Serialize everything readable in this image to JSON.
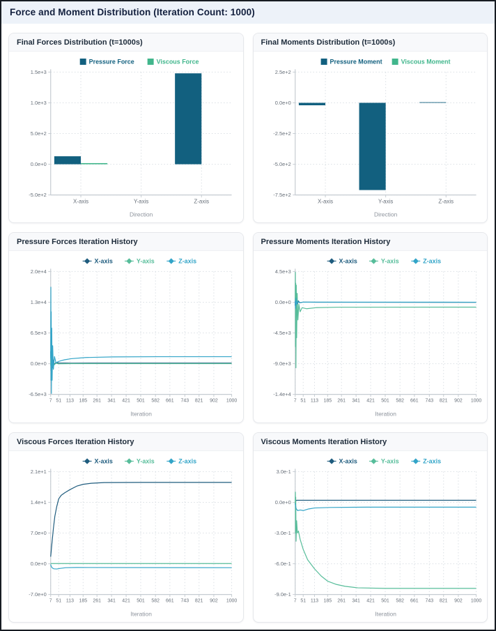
{
  "page": {
    "title": "Force and Moment Distribution (Iteration Count: 1000)"
  },
  "theme": {
    "grid": "#dadfe4",
    "axis": "#c6ccd2",
    "tick_text": "#68707a",
    "axis_label_text": "#8d939c",
    "pressure_color": "#12607f",
    "viscous_color": "#41b68c",
    "x_series_color": "#1f5c7e",
    "y_series_color": "#57bd9a",
    "z_series_color": "#33a5c8"
  },
  "chart_data": [
    {
      "title": "Final Forces Distribution (t=1000s)",
      "type": "bar",
      "xlabel": "Direction",
      "categories": [
        "X-axis",
        "Y-axis",
        "Z-axis"
      ],
      "ylim": [
        -500,
        1500
      ],
      "yticks": [
        {
          "label": "1.5e+3",
          "value": 1500
        },
        {
          "label": "1.0e+3",
          "value": 1000
        },
        {
          "label": "5.0e+2",
          "value": 500
        },
        {
          "label": "0.0e+0",
          "value": 0
        },
        {
          "label": "-5.0e+2",
          "value": -500
        }
      ],
      "series": [
        {
          "name": "Pressure Force",
          "color": "#12607f",
          "values": [
            130,
            0,
            1480
          ]
        },
        {
          "name": "Viscous Force",
          "color": "#41b68c",
          "values": [
            18.5,
            0.2,
            -0.9
          ]
        }
      ]
    },
    {
      "title": "Final Moments Distribution (t=1000s)",
      "type": "bar",
      "xlabel": "Direction",
      "categories": [
        "X-axis",
        "Y-axis",
        "Z-axis"
      ],
      "ylim": [
        -750,
        250
      ],
      "yticks": [
        {
          "label": "2.5e+2",
          "value": 250
        },
        {
          "label": "0.0e+0",
          "value": 0
        },
        {
          "label": "-2.5e+2",
          "value": -250
        },
        {
          "label": "-5.0e+2",
          "value": -500
        },
        {
          "label": "-7.5e+2",
          "value": -750
        }
      ],
      "series": [
        {
          "name": "Pressure Moment",
          "color": "#12607f",
          "values": [
            -20,
            -710,
            5
          ]
        },
        {
          "name": "Viscous Moment",
          "color": "#41b68c",
          "values": [
            0.02,
            -0.84,
            -0.05
          ]
        }
      ]
    },
    {
      "title": "Pressure Forces Iteration History",
      "type": "line",
      "xlabel": "Iteration",
      "xlim": [
        7,
        1000
      ],
      "xticks": [
        7,
        51,
        113,
        185,
        261,
        341,
        421,
        501,
        582,
        661,
        743,
        821,
        902,
        1000
      ],
      "ylim": [
        -6500,
        19500
      ],
      "yticks": [
        {
          "label": "2.0e+4",
          "value": 19500
        },
        {
          "label": "1.3e+4",
          "value": 13000
        },
        {
          "label": "6.5e+3",
          "value": 6500
        },
        {
          "label": "0.0e+0",
          "value": 0
        },
        {
          "label": "-6.5e+3",
          "value": -6500
        }
      ],
      "series": [
        {
          "name": "X-axis",
          "color": "#1f5c7e",
          "points": [
            [
              7,
              2600
            ],
            [
              9,
              -1500
            ],
            [
              10,
              5200
            ],
            [
              12,
              -2200
            ],
            [
              14,
              2600
            ],
            [
              17,
              -900
            ],
            [
              21,
              800
            ],
            [
              27,
              -200
            ],
            [
              35,
              250
            ],
            [
              51,
              140
            ],
            [
              120,
              110
            ],
            [
              300,
              125
            ],
            [
              1000,
              130
            ]
          ]
        },
        {
          "name": "Y-axis",
          "color": "#57bd9a",
          "points": [
            [
              7,
              -400
            ],
            [
              9,
              2200
            ],
            [
              11,
              -2600
            ],
            [
              13,
              1500
            ],
            [
              16,
              -900
            ],
            [
              20,
              500
            ],
            [
              26,
              -250
            ],
            [
              35,
              80
            ],
            [
              51,
              -30
            ],
            [
              120,
              10
            ],
            [
              1000,
              5
            ]
          ]
        },
        {
          "name": "Z-axis",
          "color": "#33a5c8",
          "points": [
            [
              7,
              1200
            ],
            [
              8,
              16200
            ],
            [
              9,
              -3500
            ],
            [
              10,
              11000
            ],
            [
              11,
              -6300
            ],
            [
              13,
              7500
            ],
            [
              15,
              -3500
            ],
            [
              18,
              3800
            ],
            [
              22,
              -1200
            ],
            [
              28,
              1500
            ],
            [
              36,
              200
            ],
            [
              51,
              480
            ],
            [
              80,
              800
            ],
            [
              120,
              1050
            ],
            [
              200,
              1300
            ],
            [
              350,
              1430
            ],
            [
              600,
              1475
            ],
            [
              1000,
              1480
            ]
          ]
        }
      ]
    },
    {
      "title": "Pressure Moments Iteration History",
      "type": "line",
      "xlabel": "Iteration",
      "xlim": [
        7,
        1000
      ],
      "xticks": [
        7,
        51,
        113,
        185,
        261,
        341,
        421,
        501,
        582,
        661,
        743,
        821,
        902,
        1000
      ],
      "ylim": [
        -13500,
        4500
      ],
      "yticks": [
        {
          "label": "4.5e+3",
          "value": 4500
        },
        {
          "label": "0.0e+0",
          "value": 0
        },
        {
          "label": "-4.5e+3",
          "value": -4500
        },
        {
          "label": "-9.0e+3",
          "value": -9000
        },
        {
          "label": "-1.4e+4",
          "value": -13500
        }
      ],
      "series": [
        {
          "name": "X-axis",
          "color": "#1f5c7e",
          "points": [
            [
              7,
              -500
            ],
            [
              9,
              1300
            ],
            [
              11,
              -1500
            ],
            [
              14,
              800
            ],
            [
              18,
              -500
            ],
            [
              24,
              200
            ],
            [
              32,
              -80
            ],
            [
              51,
              20
            ],
            [
              120,
              -10
            ],
            [
              1000,
              -20
            ]
          ]
        },
        {
          "name": "Y-axis",
          "color": "#57bd9a",
          "points": [
            [
              7,
              300
            ],
            [
              8,
              4400
            ],
            [
              9,
              -6500
            ],
            [
              10,
              2800
            ],
            [
              11,
              -9600
            ],
            [
              13,
              2500
            ],
            [
              15,
              -5200
            ],
            [
              18,
              1300
            ],
            [
              22,
              -2600
            ],
            [
              27,
              -300
            ],
            [
              34,
              -1400
            ],
            [
              45,
              -800
            ],
            [
              70,
              -950
            ],
            [
              120,
              -800
            ],
            [
              250,
              -730
            ],
            [
              1000,
              -715
            ]
          ]
        },
        {
          "name": "Z-axis",
          "color": "#33a5c8",
          "points": [
            [
              7,
              200
            ],
            [
              9,
              -900
            ],
            [
              12,
              600
            ],
            [
              16,
              -350
            ],
            [
              22,
              150
            ],
            [
              30,
              -60
            ],
            [
              51,
              20
            ],
            [
              1000,
              5
            ]
          ]
        }
      ]
    },
    {
      "title": "Viscous Forces Iteration History",
      "type": "line",
      "xlabel": "Iteration",
      "xlim": [
        7,
        1000
      ],
      "xticks": [
        7,
        51,
        113,
        185,
        261,
        341,
        421,
        501,
        582,
        661,
        743,
        821,
        902,
        1000
      ],
      "ylim": [
        -7,
        21
      ],
      "yticks": [
        {
          "label": "2.1e+1",
          "value": 21
        },
        {
          "label": "1.4e+1",
          "value": 14
        },
        {
          "label": "7.0e+0",
          "value": 7
        },
        {
          "label": "0.0e+0",
          "value": 0
        },
        {
          "label": "-7.0e+0",
          "value": -7
        }
      ],
      "series": [
        {
          "name": "X-axis",
          "color": "#1f5c7e",
          "points": [
            [
              7,
              1.6
            ],
            [
              9,
              2.4
            ],
            [
              12,
              3.8
            ],
            [
              16,
              5.6
            ],
            [
              22,
              8.0
            ],
            [
              30,
              10.8
            ],
            [
              40,
              13.0
            ],
            [
              51,
              14.8
            ],
            [
              65,
              15.6
            ],
            [
              85,
              16.2
            ],
            [
              113,
              16.9
            ],
            [
              150,
              17.7
            ],
            [
              185,
              18.1
            ],
            [
              230,
              18.35
            ],
            [
              300,
              18.5
            ],
            [
              500,
              18.55
            ],
            [
              1000,
              18.55
            ]
          ]
        },
        {
          "name": "Y-axis",
          "color": "#57bd9a",
          "points": [
            [
              7,
              0.05
            ],
            [
              51,
              0.05
            ],
            [
              1000,
              0.05
            ]
          ]
        },
        {
          "name": "Z-axis",
          "color": "#33a5c8",
          "points": [
            [
              7,
              -0.15
            ],
            [
              10,
              -0.6
            ],
            [
              16,
              -0.95
            ],
            [
              25,
              -1.15
            ],
            [
              40,
              -1.2
            ],
            [
              60,
              -1.05
            ],
            [
              90,
              -0.9
            ],
            [
              150,
              -0.85
            ],
            [
              1000,
              -0.9
            ]
          ]
        }
      ]
    },
    {
      "title": "Viscous Moments Iteration History",
      "type": "line",
      "xlabel": "Iteration",
      "xlim": [
        7,
        1000
      ],
      "xticks": [
        7,
        51,
        113,
        185,
        261,
        341,
        421,
        501,
        582,
        661,
        743,
        821,
        902,
        1000
      ],
      "ylim": [
        -0.9,
        0.3
      ],
      "yticks": [
        {
          "label": "3.0e-1",
          "value": 0.3
        },
        {
          "label": "0.0e+0",
          "value": 0
        },
        {
          "label": "-3.0e-1",
          "value": -0.3
        },
        {
          "label": "-6.0e-1",
          "value": -0.6
        },
        {
          "label": "-9.0e-1",
          "value": -0.9
        }
      ],
      "series": [
        {
          "name": "X-axis",
          "color": "#1f5c7e",
          "points": [
            [
              7,
              0.01
            ],
            [
              15,
              0.02
            ],
            [
              51,
              0.02
            ],
            [
              1000,
              0.02
            ]
          ]
        },
        {
          "name": "Y-axis",
          "color": "#57bd9a",
          "points": [
            [
              7,
              -0.02
            ],
            [
              8,
              0.1
            ],
            [
              9,
              -0.3
            ],
            [
              10,
              0.05
            ],
            [
              12,
              -0.38
            ],
            [
              15,
              -0.18
            ],
            [
              19,
              -0.3
            ],
            [
              25,
              -0.28
            ],
            [
              34,
              -0.36
            ],
            [
              51,
              -0.46
            ],
            [
              75,
              -0.56
            ],
            [
              113,
              -0.65
            ],
            [
              150,
              -0.72
            ],
            [
              185,
              -0.77
            ],
            [
              230,
              -0.8
            ],
            [
              280,
              -0.82
            ],
            [
              350,
              -0.835
            ],
            [
              500,
              -0.84
            ],
            [
              1000,
              -0.84
            ]
          ]
        },
        {
          "name": "Z-axis",
          "color": "#33a5c8",
          "points": [
            [
              7,
              -0.01
            ],
            [
              12,
              -0.06
            ],
            [
              20,
              -0.08
            ],
            [
              35,
              -0.075
            ],
            [
              51,
              -0.08
            ],
            [
              80,
              -0.065
            ],
            [
              113,
              -0.055
            ],
            [
              200,
              -0.05
            ],
            [
              400,
              -0.047
            ],
            [
              1000,
              -0.047
            ]
          ]
        }
      ]
    }
  ]
}
